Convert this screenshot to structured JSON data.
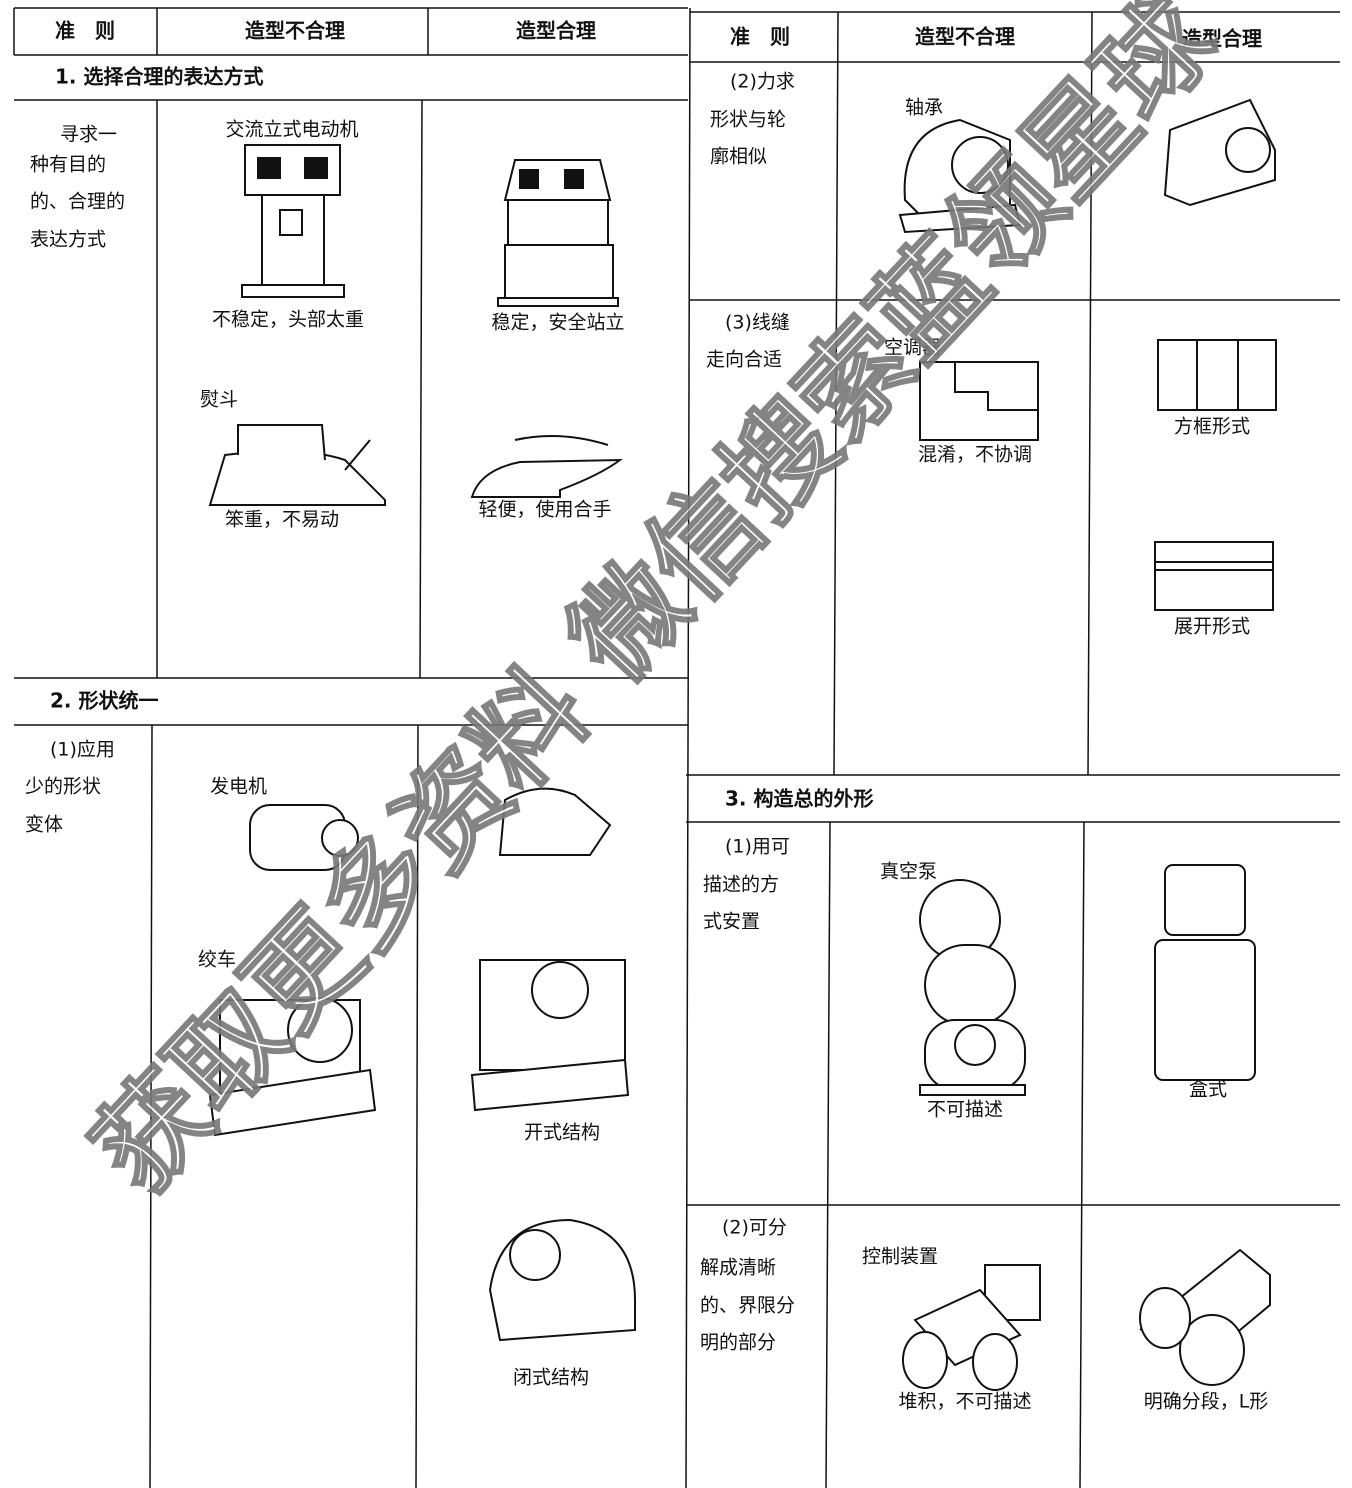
{
  "left_table": {
    "headers": [
      "准　则",
      "造型不合理",
      "造型合理"
    ],
    "section_1": {
      "title": "1. 选择合理的表达方式",
      "criterion": [
        "寻求一",
        "种有目的",
        "的、合理的",
        "表达方式"
      ],
      "bad": [
        {
          "name": "交流立式电动机",
          "caption": "不稳定，头部太重"
        },
        {
          "name": "熨斗",
          "caption": "笨重，不易动"
        }
      ],
      "good": [
        {
          "caption": "稳定，安全站立"
        },
        {
          "caption": "轻便，使用合手"
        }
      ]
    },
    "section_2": {
      "title": "2. 形状统一",
      "criterion": [
        "(1)应用",
        "少的形状",
        "变体"
      ],
      "bad": [
        {
          "name": "发电机"
        },
        {
          "name": "绞车"
        }
      ],
      "good": [
        {
          "caption": "开式结构"
        },
        {
          "caption": "闭式结构"
        }
      ]
    }
  },
  "right_table": {
    "headers": [
      "准　则",
      "造型不合理",
      "造型合理"
    ],
    "row_2": {
      "criterion": [
        "(2)力求",
        "形状与轮",
        "廓相似"
      ],
      "bad": {
        "name": "轴承"
      }
    },
    "row_3": {
      "criterion": [
        "(3)线缝",
        "走向合适"
      ],
      "bad": {
        "name": "空调器",
        "caption": "混淆，不协调"
      },
      "good": [
        {
          "caption": "方框形式"
        },
        {
          "caption": "展开形式"
        }
      ]
    },
    "section_3": {
      "title": "3. 构造总的外形",
      "row_1": {
        "criterion": [
          "(1)用可",
          "描述的方",
          "式安置"
        ],
        "bad": {
          "name": "真空泵",
          "caption": "不可描述"
        },
        "good": {
          "caption": "盒式"
        }
      },
      "row_2": {
        "criterion": [
          "(2)可分",
          "解成清晰",
          "的、界限分",
          "明的部分"
        ],
        "bad": {
          "name": "控制装置",
          "caption": "堆积，不可描述"
        },
        "good": {
          "caption": "明确分段，L形"
        }
      }
    }
  },
  "watermark": "获取更多资料  微信搜索蓝领星球"
}
